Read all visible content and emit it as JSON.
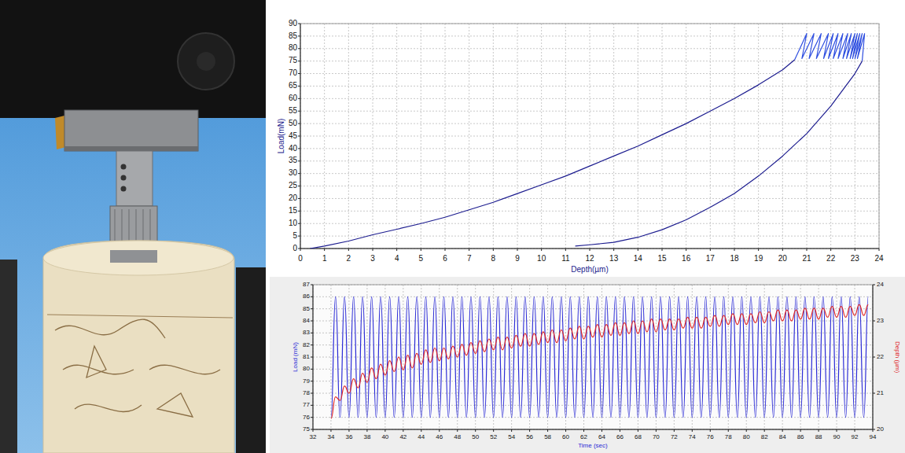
{
  "chart_data": [
    {
      "type": "line",
      "x_label": "Depth(µm)",
      "y_label": "Load(mN)",
      "xlim": [
        0,
        24
      ],
      "ylim": [
        0,
        90
      ],
      "xticks": [
        0,
        1,
        2,
        3,
        4,
        5,
        6,
        7,
        8,
        9,
        10,
        11,
        12,
        13,
        14,
        15,
        16,
        17,
        18,
        19,
        20,
        21,
        22,
        23,
        24
      ],
      "yticks": [
        0,
        5,
        10,
        15,
        20,
        25,
        30,
        35,
        40,
        45,
        50,
        55,
        60,
        65,
        70,
        75,
        80,
        85,
        90
      ],
      "grid": true,
      "series": [
        {
          "color": "#1c1c8f",
          "line_style": "solid",
          "x": [
            0.4,
            1,
            2,
            3,
            4,
            5,
            6,
            7,
            8,
            9,
            10,
            11,
            12,
            13,
            14,
            15,
            16,
            17,
            18,
            19,
            20,
            20.5
          ],
          "values": [
            0,
            1,
            3,
            5.5,
            7.7,
            10,
            12.5,
            15.5,
            18.5,
            22,
            25.5,
            29,
            33,
            37,
            41,
            45.5,
            50,
            55,
            60,
            65.5,
            71.5,
            75.5
          ]
        },
        {
          "color": "#2f4fe0",
          "line_style": "solid",
          "x": [
            20.5,
            21.0,
            20.8,
            21.3,
            21.1,
            21.6,
            21.4,
            21.9,
            21.7,
            22.1,
            21.9,
            22.3,
            22.1,
            22.5,
            22.3,
            22.7,
            22.5,
            22.85,
            22.65,
            23.0,
            22.8,
            23.1,
            22.9,
            23.2,
            23.0,
            23.3,
            23.1,
            23.4,
            23.3
          ],
          "values": [
            75.5,
            86,
            76,
            86,
            76,
            86,
            76,
            86,
            76,
            86,
            76,
            86,
            76,
            86,
            76,
            86,
            76,
            86,
            76,
            86,
            76,
            86,
            76,
            86,
            76,
            86,
            76,
            86,
            75
          ]
        },
        {
          "color": "#1c1c8f",
          "line_style": "solid",
          "x": [
            23.3,
            23,
            22,
            21,
            20,
            19,
            18,
            17,
            16,
            15,
            14,
            13,
            12,
            11.4
          ],
          "values": [
            75,
            70,
            57,
            46,
            37,
            29,
            22,
            16.5,
            11.5,
            7.5,
            4.5,
            2.5,
            1.5,
            1
          ]
        }
      ]
    },
    {
      "type": "line",
      "x_label": "Time (sec)",
      "y_label": "Load (mN)",
      "y2_label": "Depth (µm)",
      "xlim": [
        32,
        94
      ],
      "ylim": [
        75,
        87
      ],
      "y2lim": [
        20,
        24
      ],
      "xticks": [
        32,
        34,
        36,
        38,
        40,
        42,
        44,
        46,
        48,
        50,
        52,
        54,
        56,
        58,
        60,
        62,
        64,
        66,
        68,
        70,
        72,
        74,
        76,
        78,
        80,
        82,
        84,
        86,
        88,
        90,
        92,
        94
      ],
      "yticks": [
        75,
        76,
        77,
        78,
        79,
        80,
        81,
        82,
        83,
        84,
        85,
        86,
        87
      ],
      "y2ticks": [
        20,
        21,
        22,
        23,
        24
      ],
      "grid": true,
      "x": [
        34,
        34.5,
        35,
        35.5,
        36,
        36.5,
        37,
        37.5,
        38,
        38.5,
        39,
        39.5,
        40,
        40.5,
        41,
        41.5,
        42,
        42.5,
        43,
        43.5,
        44,
        44.5,
        45,
        45.5,
        46,
        46.5,
        47,
        47.5,
        48,
        48.5,
        49,
        49.5,
        50,
        50.5,
        51,
        51.5,
        52,
        52.5,
        53,
        53.5,
        54,
        54.5,
        55,
        55.5,
        56,
        56.5,
        57,
        57.5,
        58,
        58.5,
        59,
        59.5,
        60,
        60.5,
        61,
        61.5,
        62,
        62.5,
        63,
        63.5,
        64,
        64.5,
        65,
        65.5,
        66,
        66.5,
        67,
        67.5,
        68,
        68.5,
        69,
        69.5,
        70,
        70.5,
        71,
        71.5,
        72,
        72.5,
        73,
        73.5,
        74,
        74.5,
        75,
        75.5,
        76,
        76.5,
        77,
        77.5,
        78,
        78.5,
        79,
        79.5,
        80,
        80.5,
        81,
        81.5,
        82,
        82.5,
        83,
        83.5,
        84,
        84.5,
        85,
        85.5,
        86,
        86.5,
        87,
        87.5,
        88,
        88.5,
        89,
        89.5,
        90,
        90.5,
        91,
        91.5,
        92,
        92.5,
        93,
        93.5
      ],
      "series": [
        {
          "color": "#2b2bd6",
          "line_style": "smooth",
          "values": [
            76,
            86,
            76,
            86,
            76,
            86,
            76,
            86,
            76,
            86,
            76,
            86,
            76,
            86,
            76,
            86,
            76,
            86,
            76,
            86,
            76,
            86,
            76,
            86,
            76,
            86,
            76,
            86,
            76,
            86,
            76,
            86,
            76,
            86,
            76,
            86,
            76,
            86,
            76,
            86,
            76,
            86,
            76,
            86,
            76,
            86,
            76,
            86,
            76,
            86,
            76,
            86,
            76,
            86,
            76,
            86,
            76,
            86,
            76,
            86,
            76,
            86,
            76,
            86,
            76,
            86,
            76,
            86,
            76,
            86,
            76,
            86,
            76,
            86,
            76,
            86,
            76,
            86,
            76,
            86,
            76,
            86,
            76,
            86,
            76,
            86,
            76,
            86,
            76,
            86,
            76,
            86,
            76,
            86,
            76,
            86,
            76,
            86,
            76,
            86,
            76,
            86,
            76,
            86,
            76,
            86,
            76,
            86,
            76,
            86,
            76,
            86,
            76,
            86,
            76,
            86,
            76,
            86,
            76,
            86
          ]
        },
        {
          "color": "#e02828",
          "axis": "y2",
          "line_style": "smooth",
          "values": [
            20.3,
            20.9,
            20.8,
            21.2,
            21.0,
            21.4,
            21.15,
            21.55,
            21.3,
            21.7,
            21.4,
            21.8,
            21.5,
            21.9,
            21.6,
            22.0,
            21.65,
            22.05,
            21.7,
            22.1,
            21.8,
            22.2,
            21.85,
            22.25,
            21.9,
            22.25,
            21.95,
            22.3,
            22.0,
            22.35,
            22.05,
            22.4,
            22.1,
            22.45,
            22.15,
            22.5,
            22.2,
            22.55,
            22.2,
            22.55,
            22.25,
            22.6,
            22.3,
            22.65,
            22.3,
            22.65,
            22.35,
            22.7,
            22.4,
            22.75,
            22.4,
            22.75,
            22.45,
            22.8,
            22.5,
            22.85,
            22.5,
            22.85,
            22.55,
            22.9,
            22.55,
            22.9,
            22.6,
            22.95,
            22.6,
            22.95,
            22.65,
            23.0,
            22.65,
            23.0,
            22.7,
            23.05,
            22.7,
            23.05,
            22.75,
            23.05,
            22.75,
            23.05,
            22.8,
            23.1,
            22.8,
            23.1,
            22.8,
            23.1,
            22.85,
            23.15,
            22.85,
            23.15,
            22.9,
            23.2,
            22.9,
            23.2,
            22.9,
            23.2,
            22.95,
            23.25,
            22.95,
            23.25,
            23.0,
            23.3,
            23.0,
            23.3,
            23.0,
            23.3,
            23.05,
            23.35,
            23.05,
            23.35,
            23.05,
            23.35,
            23.1,
            23.4,
            23.1,
            23.4,
            23.1,
            23.4,
            23.15,
            23.45,
            23.15,
            23.45
          ]
        }
      ]
    }
  ]
}
